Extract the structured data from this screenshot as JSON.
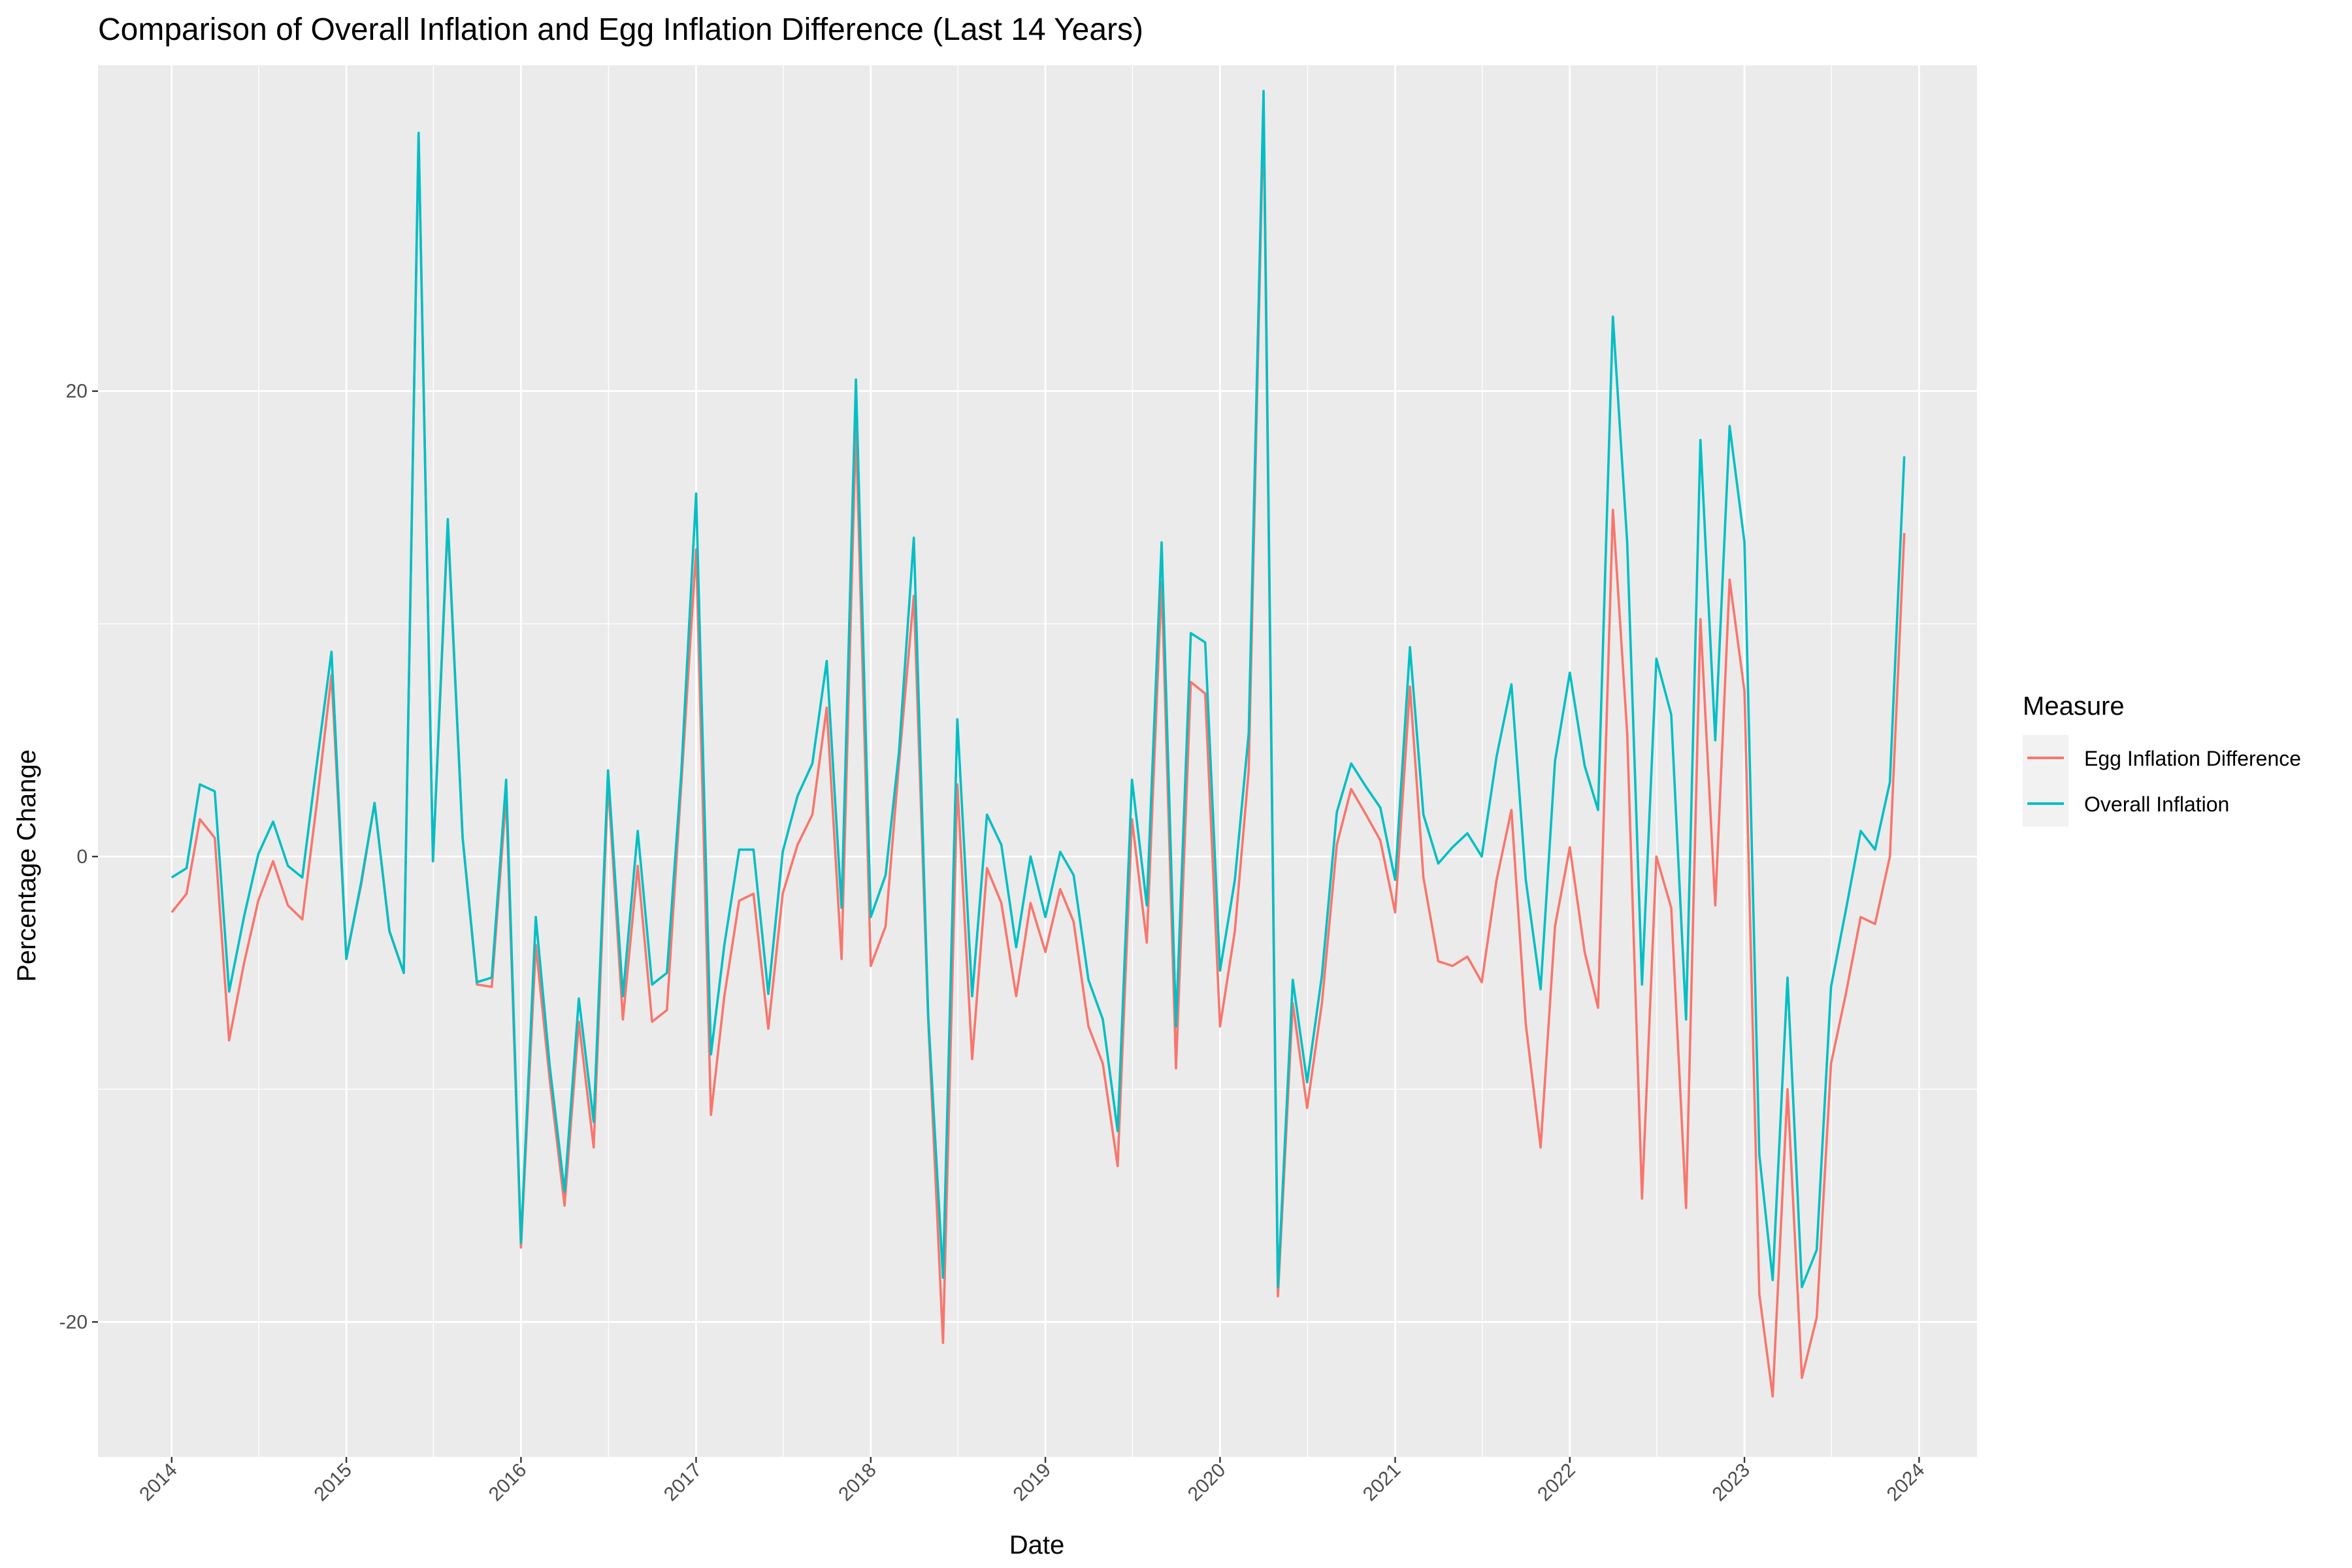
{
  "chart_data": {
    "type": "line",
    "title": "Comparison of Overall Inflation and Egg Inflation Difference (Last 14 Years)",
    "xlabel": "Date",
    "ylabel": "Percentage Change",
    "x_range": [
      "2013-07-31",
      "2024-05-01"
    ],
    "ylim": [
      -25.8,
      34.0
    ],
    "x_ticks": [
      "2014",
      "2015",
      "2016",
      "2017",
      "2018",
      "2019",
      "2020",
      "2021",
      "2022",
      "2023",
      "2024"
    ],
    "y_ticks": [
      -20,
      0,
      20
    ],
    "grid": true,
    "legend": {
      "title": "Measure",
      "position": "right"
    },
    "colors": {
      "Egg Inflation Difference": "#F8766D",
      "Overall Inflation": "#00BFC4"
    },
    "x": [
      "2014-01",
      "2014-02",
      "2014-03",
      "2014-04",
      "2014-05",
      "2014-06",
      "2014-07",
      "2014-08",
      "2014-09",
      "2014-10",
      "2014-11",
      "2014-12",
      "2015-01",
      "2015-02",
      "2015-03",
      "2015-04",
      "2015-05",
      "2015-06",
      "2015-07",
      "2015-08",
      "2015-09",
      "2015-10",
      "2015-11",
      "2015-12",
      "2016-01",
      "2016-02",
      "2016-03",
      "2016-04",
      "2016-05",
      "2016-06",
      "2016-07",
      "2016-08",
      "2016-09",
      "2016-10",
      "2016-11",
      "2016-12",
      "2017-01",
      "2017-02",
      "2017-03",
      "2017-04",
      "2017-05",
      "2017-06",
      "2017-07",
      "2017-08",
      "2017-09",
      "2017-10",
      "2017-11",
      "2017-12",
      "2018-01",
      "2018-02",
      "2018-03",
      "2018-04",
      "2018-05",
      "2018-06",
      "2018-07",
      "2018-08",
      "2018-09",
      "2018-10",
      "2018-11",
      "2018-12",
      "2019-01",
      "2019-02",
      "2019-03",
      "2019-04",
      "2019-05",
      "2019-06",
      "2019-07",
      "2019-08",
      "2019-09",
      "2019-10",
      "2019-11",
      "2019-12",
      "2020-01",
      "2020-02",
      "2020-03",
      "2020-04",
      "2020-05",
      "2020-06",
      "2020-07",
      "2020-08",
      "2020-09",
      "2020-10",
      "2020-11",
      "2020-12",
      "2021-01",
      "2021-02",
      "2021-03",
      "2021-04",
      "2021-05",
      "2021-06",
      "2021-07",
      "2021-08",
      "2021-09",
      "2021-10",
      "2021-11",
      "2021-12",
      "2022-01",
      "2022-02",
      "2022-03",
      "2022-04",
      "2022-05",
      "2022-06",
      "2022-07",
      "2022-08",
      "2022-09",
      "2022-10",
      "2022-11",
      "2022-12",
      "2023-01",
      "2023-02",
      "2023-03",
      "2023-04",
      "2023-05",
      "2023-06",
      "2023-07",
      "2023-08",
      "2023-09",
      "2023-10",
      "2023-11",
      "2023-12"
    ],
    "series": [
      {
        "name": "Egg Inflation Difference",
        "values": [
          -2.4,
          -1.6,
          1.6,
          0.8,
          -7.9,
          -4.6,
          -1.9,
          -0.2,
          -2.1,
          -2.7,
          2.4,
          7.8,
          -4.3,
          -1.2,
          2.3,
          -3.2,
          -5.0,
          31.0,
          -0.2,
          14.3,
          0.8,
          -5.5,
          -5.6,
          2.6,
          -16.8,
          -3.8,
          -9.6,
          -15.0,
          -7.1,
          -12.5,
          3.2,
          -7.0,
          -0.4,
          -7.1,
          -6.6,
          3.1,
          13.2,
          -11.1,
          -6.0,
          -1.9,
          -1.6,
          -7.4,
          -1.6,
          0.5,
          1.8,
          6.4,
          -4.4,
          18.5,
          -4.7,
          -3.0,
          4.0,
          11.2,
          -7.0,
          -20.9,
          3.1,
          -8.7,
          -0.5,
          -2.0,
          -6.0,
          -2.0,
          -4.1,
          -1.4,
          -2.8,
          -7.3,
          -8.9,
          -13.3,
          1.6,
          -3.7,
          11.8,
          -9.1,
          7.5,
          7.0,
          -7.3,
          -3.2,
          3.7,
          32.2,
          -18.9,
          -6.3,
          -10.8,
          -6.3,
          0.5,
          2.9,
          1.8,
          0.7,
          -2.4,
          7.3,
          -0.9,
          -4.5,
          -4.7,
          -4.3,
          -5.4,
          -1.0,
          2.0,
          -7.2,
          -12.5,
          -3.0,
          0.4,
          -4.1,
          -6.5,
          14.9,
          5.3,
          -14.7,
          0.0,
          -2.2,
          -15.1,
          10.2,
          -2.1,
          11.9,
          7.1,
          -18.8,
          -23.2,
          -10.0,
          -22.4,
          -19.8,
          -8.9,
          -5.9,
          -2.6,
          -2.9,
          0.0,
          13.9
        ]
      },
      {
        "name": "Overall Inflation",
        "values": [
          -0.9,
          -0.5,
          3.1,
          2.8,
          -5.8,
          -2.6,
          0.1,
          1.5,
          -0.4,
          -0.9,
          4.1,
          8.8,
          -4.4,
          -1.1,
          2.3,
          -3.2,
          -5.0,
          31.1,
          -0.2,
          14.5,
          0.8,
          -5.4,
          -5.2,
          3.3,
          -16.6,
          -2.6,
          -9.0,
          -14.4,
          -6.1,
          -11.4,
          3.7,
          -6.0,
          1.1,
          -5.5,
          -5.0,
          3.6,
          15.6,
          -8.5,
          -3.8,
          0.3,
          0.3,
          -5.9,
          0.2,
          2.6,
          4.0,
          8.4,
          -2.2,
          20.5,
          -2.6,
          -0.8,
          4.5,
          13.7,
          -6.8,
          -18.1,
          5.9,
          -6.0,
          1.8,
          0.5,
          -3.9,
          0.0,
          -2.6,
          0.2,
          -0.8,
          -5.3,
          -7.0,
          -11.8,
          3.3,
          -2.1,
          13.5,
          -7.3,
          9.6,
          9.2,
          -4.9,
          -1.0,
          5.3,
          32.9,
          -18.5,
          -5.3,
          -9.7,
          -5.1,
          1.9,
          4.0,
          3.0,
          2.1,
          -1.0,
          9.0,
          1.8,
          -0.3,
          0.4,
          1.0,
          0.0,
          4.3,
          7.4,
          -1.0,
          -5.7,
          4.1,
          7.9,
          3.9,
          2.0,
          23.2,
          13.5,
          -5.5,
          8.5,
          6.1,
          -7.0,
          17.9,
          5.0,
          18.5,
          13.5,
          -12.8,
          -18.2,
          -5.2,
          -18.5,
          -16.9,
          -5.6,
          -2.3,
          1.1,
          0.3,
          3.2,
          17.2
        ]
      }
    ]
  }
}
